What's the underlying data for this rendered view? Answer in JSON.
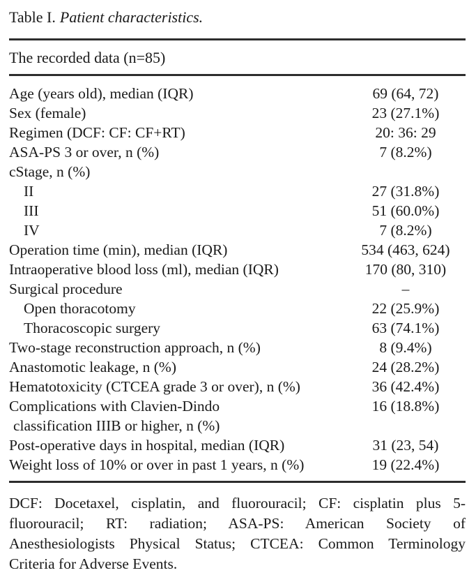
{
  "document": {
    "caption": {
      "prefix": "Table I.",
      "title": "Patient characteristics."
    },
    "table": {
      "header": "The recorded data (n=85)",
      "rows": [
        {
          "label": "Age (years old), median (IQR)",
          "value": "69 (64, 72)",
          "indent": 0
        },
        {
          "label": "Sex (female)",
          "value": "23 (27.1%)",
          "indent": 0
        },
        {
          "label": "Regimen (DCF: CF: CF+RT)",
          "value": "20: 36: 29",
          "indent": 0
        },
        {
          "label": "ASA-PS 3 or over, n (%)",
          "value": "7 (8.2%)",
          "indent": 0
        },
        {
          "label": "cStage, n (%)",
          "value": "",
          "indent": 0
        },
        {
          "label": "II",
          "value": "27 (31.8%)",
          "indent": 1
        },
        {
          "label": "III",
          "value": "51 (60.0%)",
          "indent": 1
        },
        {
          "label": "IV",
          "value": "7 (8.2%)",
          "indent": 1
        },
        {
          "label": "Operation time (min), median (IQR)",
          "value": "534 (463, 624)",
          "indent": 0
        },
        {
          "label": "Intraoperative blood loss (ml), median (IQR)",
          "value": "170 (80, 310)",
          "indent": 0
        },
        {
          "label": "Surgical procedure",
          "value": "–",
          "indent": 0
        },
        {
          "label": "Open thoracotomy",
          "value": "22 (25.9%)",
          "indent": 1
        },
        {
          "label": "Thoracoscopic surgery",
          "value": "63 (74.1%)",
          "indent": 1
        },
        {
          "label": "Two-stage reconstruction approach, n (%)",
          "value": "8 (9.4%)",
          "indent": 0
        },
        {
          "label": "Anastomotic leakage, n (%)",
          "value": "24 (28.2%)",
          "indent": 0
        },
        {
          "label": "Hematotoxicity (CTCEA grade 3 or over), n (%)",
          "value": "36 (42.4%)",
          "indent": 0
        },
        {
          "label": "Complications with Clavien-Dindo",
          "value": "16 (18.8%)",
          "indent": 0
        },
        {
          "label": "classification IIIB or higher, n (%)",
          "value": "",
          "indent": 2
        },
        {
          "label": "Post-operative days in hospital, median (IQR)",
          "value": "31 (23, 54)",
          "indent": 0
        },
        {
          "label": "Weight loss of 10% or over in past 1 years, n (%)",
          "value": "19 (22.4%)",
          "indent": 0
        }
      ]
    },
    "footnote": {
      "lines": [
        "DCF: Docetaxel, cisplatin, and fluorouracil; CF: cisplatin plus 5-",
        "fluorouracil; RT: radiation; ASA-PS: American Society of",
        "Anesthesiologists Physical Status; CTCEA: Common Terminology",
        "Criteria for Adverse Events."
      ],
      "full_text": "DCF: Docetaxel, cisplatin, and fluorouracil; CF: cisplatin plus 5-fluorouracil; RT: radiation; ASA-PS: American Society of Anesthesiologists Physical Status; CTCEA: Common Terminology Criteria for Adverse Events."
    },
    "colors": {
      "text": "#1a1a1a",
      "rule": "#2d2d2d",
      "background": "#ffffff"
    }
  }
}
